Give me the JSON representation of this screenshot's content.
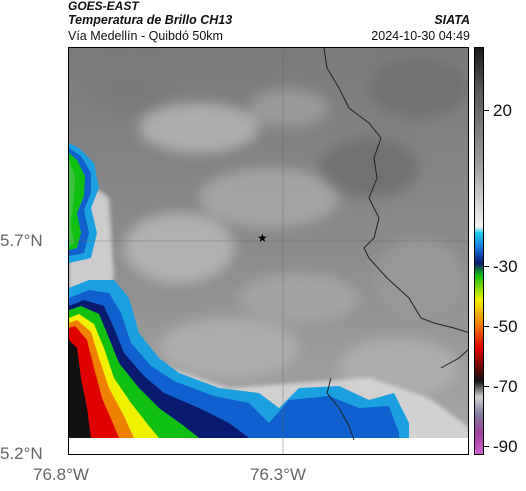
{
  "header": {
    "satellite": "GOES-EAST",
    "product": "Temperatura de Brillo CH13",
    "region": "Vía Medellín - Quibdó 50km",
    "agency": "SIATA",
    "timestamp": "2024-10-30 04:49"
  },
  "map": {
    "lat_labels": [
      "5.7°N",
      "5.2°N"
    ],
    "lon_labels": [
      "76.8°W",
      "76.3°W"
    ],
    "marker": "star-marker",
    "colors": {
      "background_gray": "#8a8a8a",
      "warm_white": "#f0f0f0",
      "cold_blue": "#1060d0",
      "cold_green": "#10c010",
      "cold_yellow": "#f0f000",
      "cold_red": "#e00000",
      "cold_black": "#111111"
    }
  },
  "colorbar": {
    "ticks": [
      "20",
      "-30",
      "-50",
      "-70",
      "-90"
    ]
  }
}
